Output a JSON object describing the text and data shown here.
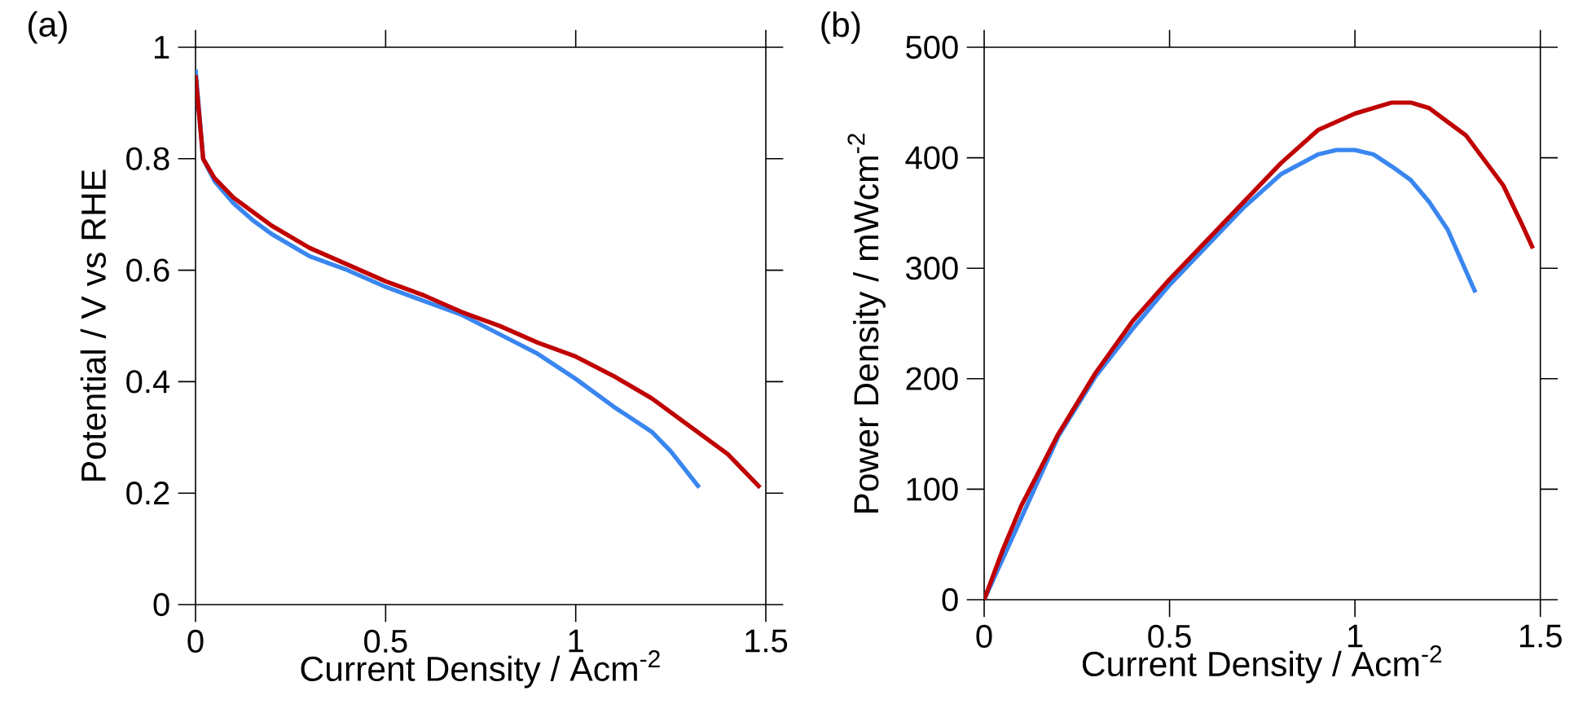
{
  "chart_data": [
    {
      "type": "line",
      "title": "(a)",
      "xlabel": "Current Density / Acm$^{-2}$",
      "ylabel": "Potential / V vs RHE",
      "xlim": [
        0,
        1.5
      ],
      "ylim": [
        0,
        1
      ],
      "xticks": [
        0,
        0.5,
        1,
        1.5
      ],
      "yticks": [
        0,
        0.2,
        0.4,
        0.6,
        0.8,
        1
      ],
      "series": [
        {
          "color": "#3a86f0",
          "x": [
            0,
            0.02,
            0.05,
            0.1,
            0.15,
            0.2,
            0.3,
            0.4,
            0.5,
            0.6,
            0.7,
            0.8,
            0.9,
            1.0,
            1.1,
            1.2,
            1.25,
            1.325
          ],
          "values": [
            0.96,
            0.8,
            0.76,
            0.72,
            0.69,
            0.665,
            0.625,
            0.6,
            0.57,
            0.545,
            0.52,
            0.485,
            0.45,
            0.405,
            0.355,
            0.31,
            0.275,
            0.21
          ]
        },
        {
          "color": "#c00000",
          "x": [
            0,
            0.02,
            0.05,
            0.1,
            0.2,
            0.3,
            0.4,
            0.5,
            0.6,
            0.7,
            0.8,
            0.9,
            1.0,
            1.1,
            1.2,
            1.3,
            1.4,
            1.485
          ],
          "values": [
            0.95,
            0.8,
            0.765,
            0.73,
            0.68,
            0.64,
            0.61,
            0.58,
            0.555,
            0.525,
            0.5,
            0.47,
            0.445,
            0.41,
            0.37,
            0.32,
            0.27,
            0.21
          ]
        }
      ]
    },
    {
      "type": "line",
      "title": "(b)",
      "xlabel": "Current Density / Acm$^{-2}$",
      "ylabel": "Power Density / mWcm$^{-2}$",
      "xlim": [
        0,
        1.5
      ],
      "ylim": [
        0,
        500
      ],
      "xticks": [
        0,
        0.5,
        1,
        1.5
      ],
      "yticks": [
        0,
        100,
        200,
        300,
        400,
        500
      ],
      "series": [
        {
          "color": "#3a86f0",
          "x": [
            0,
            0.05,
            0.1,
            0.2,
            0.3,
            0.4,
            0.5,
            0.6,
            0.7,
            0.8,
            0.9,
            0.95,
            1.0,
            1.05,
            1.1,
            1.15,
            1.2,
            1.25,
            1.325
          ],
          "values": [
            0,
            null,
            null,
            148,
            202,
            245,
            285,
            320,
            355,
            385,
            403,
            407,
            407,
            403,
            392,
            380,
            360,
            335,
            278
          ]
        },
        {
          "color": "#c00000",
          "x": [
            0,
            0.05,
            0.1,
            0.2,
            0.3,
            0.4,
            0.5,
            0.6,
            0.7,
            0.8,
            0.9,
            1.0,
            1.1,
            1.15,
            1.2,
            1.3,
            1.4,
            1.45,
            1.48
          ],
          "values": [
            0,
            45,
            85,
            150,
            205,
            252,
            290,
            325,
            360,
            395,
            425,
            440,
            450,
            450,
            445,
            420,
            375,
            340,
            318
          ]
        }
      ]
    }
  ]
}
